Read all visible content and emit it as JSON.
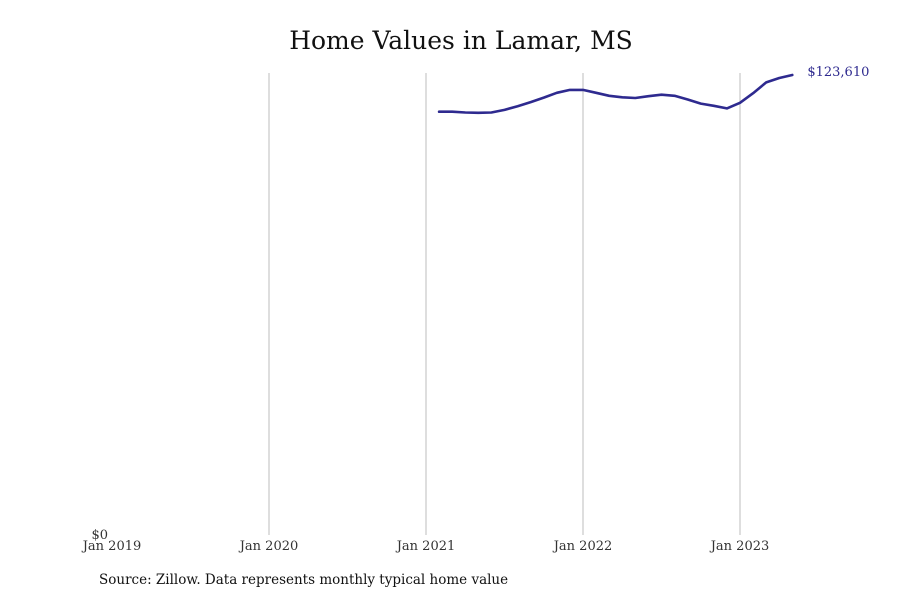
{
  "chart_data": {
    "type": "line",
    "title": "Home Values in Lamar, MS",
    "xlabel": "",
    "ylabel": "",
    "x_ticks": [
      "Jan 2019",
      "Jan 2020",
      "Jan 2021",
      "Jan 2022",
      "Jan 2023"
    ],
    "y_ticks": [
      "$0"
    ],
    "ylim": [
      0,
      123610
    ],
    "grid": "vertical",
    "line_color": "#2e2a8f",
    "grid_color": "#bdbdbd",
    "end_label": "$123,610",
    "series": [
      {
        "x": [
          "2021-02",
          "2021-03",
          "2021-04",
          "2021-05",
          "2021-06",
          "2021-07",
          "2021-08",
          "2021-09",
          "2021-10",
          "2021-11",
          "2021-12",
          "2022-01",
          "2022-02",
          "2022-03",
          "2022-04",
          "2022-05",
          "2022-06",
          "2022-07",
          "2022-08",
          "2022-09",
          "2022-10",
          "2022-11",
          "2022-12",
          "2023-01",
          "2023-02",
          "2023-03",
          "2023-04",
          "2023-05"
        ],
        "values": [
          113700,
          113700,
          113500,
          113400,
          113500,
          114200,
          115200,
          116300,
          117500,
          118800,
          119600,
          119600,
          118800,
          118000,
          117600,
          117400,
          117900,
          118300,
          118000,
          117000,
          115900,
          115300,
          114600,
          116100,
          118700,
          121600,
          122800,
          123610
        ]
      }
    ]
  },
  "source_note": "Source: Zillow. Data represents monthly typical home value"
}
